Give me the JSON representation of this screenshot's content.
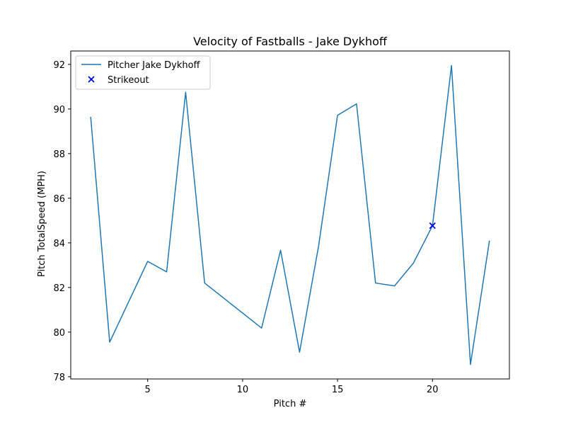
{
  "chart_data": {
    "type": "line",
    "title": "Velocity of Fastballs - Jake Dykhoff",
    "xlabel": "Pitch #",
    "ylabel": "Pitch TotalSpeed (MPH)",
    "xlim": [
      0.95,
      24.05
    ],
    "ylim": [
      77.9,
      92.6
    ],
    "xticks": [
      5,
      10,
      15,
      20
    ],
    "yticks": [
      78,
      80,
      82,
      84,
      86,
      88,
      90,
      92
    ],
    "grid": false,
    "legend_position": "upper left",
    "series": [
      {
        "name": "Pitcher Jake Dykhoff",
        "kind": "line",
        "color": "#1f77b4",
        "x": [
          2,
          3,
          5,
          6,
          7,
          8,
          11,
          12,
          13,
          14,
          15,
          16,
          17,
          18,
          19,
          20,
          21,
          22,
          23
        ],
        "y": [
          89.65,
          79.55,
          83.17,
          82.7,
          90.75,
          82.2,
          80.18,
          83.67,
          79.1,
          83.85,
          89.72,
          90.23,
          82.2,
          82.07,
          83.1,
          84.77,
          91.95,
          78.55,
          84.1
        ]
      },
      {
        "name": "Strikeout",
        "kind": "scatter",
        "marker": "x",
        "color": "#0000ff",
        "x": [
          20
        ],
        "y": [
          84.77
        ]
      }
    ]
  }
}
